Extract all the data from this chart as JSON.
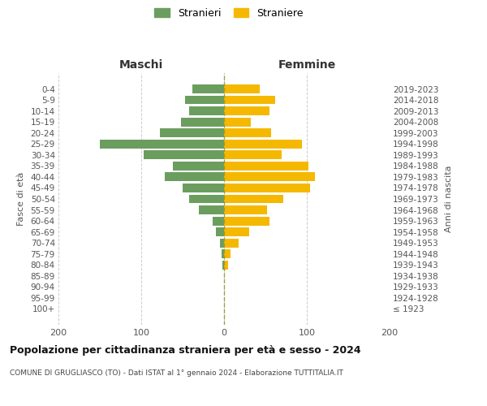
{
  "age_groups": [
    "100+",
    "95-99",
    "90-94",
    "85-89",
    "80-84",
    "75-79",
    "70-74",
    "65-69",
    "60-64",
    "55-59",
    "50-54",
    "45-49",
    "40-44",
    "35-39",
    "30-34",
    "25-29",
    "20-24",
    "15-19",
    "10-14",
    "5-9",
    "0-4"
  ],
  "birth_years": [
    "≤ 1923",
    "1924-1928",
    "1929-1933",
    "1934-1938",
    "1939-1943",
    "1944-1948",
    "1949-1953",
    "1954-1958",
    "1959-1963",
    "1964-1968",
    "1969-1973",
    "1974-1978",
    "1979-1983",
    "1984-1988",
    "1989-1993",
    "1994-1998",
    "1999-2003",
    "2004-2008",
    "2009-2013",
    "2014-2018",
    "2019-2023"
  ],
  "maschi": [
    0,
    0,
    0,
    0,
    2,
    3,
    5,
    10,
    14,
    30,
    42,
    50,
    72,
    62,
    97,
    150,
    77,
    52,
    42,
    47,
    38
  ],
  "femmine": [
    0,
    0,
    0,
    0,
    5,
    8,
    18,
    30,
    55,
    52,
    72,
    104,
    110,
    102,
    70,
    94,
    57,
    32,
    55,
    62,
    43
  ],
  "color_maschi": "#6b9e5e",
  "color_femmine": "#f5b800",
  "title": "Popolazione per cittadinanza straniera per età e sesso - 2024",
  "subtitle": "COMUNE DI GRUGLIASCO (TO) - Dati ISTAT al 1° gennaio 2024 - Elaborazione TUTTITALIA.IT",
  "label_maschi": "Maschi",
  "label_femmine": "Femmine",
  "ylabel_left": "Fasce di età",
  "ylabel_right": "Anni di nascita",
  "legend_maschi": "Stranieri",
  "legend_femmine": "Straniere",
  "xlim": 200,
  "background_color": "#ffffff",
  "grid_color": "#cccccc"
}
